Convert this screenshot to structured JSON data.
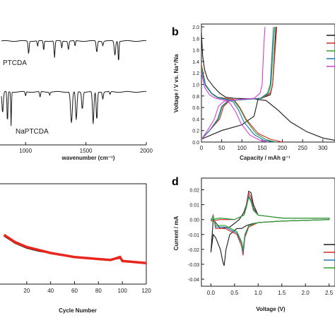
{
  "chart_data": [
    {
      "id": "a",
      "type": "line",
      "panel_label": "",
      "xlabel": "wavenumber (cm⁻¹)",
      "ylabel": "",
      "xlim": [
        800,
        2000
      ],
      "xticks": [
        1000,
        1500,
        2000
      ],
      "series": [
        {
          "name": "PTCDA",
          "label": "PTCDA",
          "color": "#1a1a1a"
        },
        {
          "name": "NaPTCDA",
          "label": "NaPTCDA",
          "color": "#1a1a1a"
        }
      ]
    },
    {
      "id": "b",
      "type": "line",
      "panel_label": "b",
      "xlabel": "Capacity / mAh g⁻¹",
      "ylabel": "Voltage / V vs. Na⁺/Na",
      "xlim": [
        0,
        330
      ],
      "ylim": [
        0,
        2.05
      ],
      "xticks": [
        0,
        50,
        100,
        150,
        200,
        250,
        300
      ],
      "yticks": [
        0.0,
        0.2,
        0.4,
        0.6,
        0.8,
        1.0,
        1.2,
        1.4,
        1.6,
        1.8,
        2.0
      ],
      "legend_colors": [
        "#1a1a1a",
        "#d62728",
        "#2ca02c",
        "#1f77b4",
        "#d43fd4"
      ],
      "series": [
        {
          "color": "#1a1a1a",
          "discharge": [
            [
              0,
              1.9
            ],
            [
              3,
              1.5
            ],
            [
              8,
              1.25
            ],
            [
              15,
              1.1
            ],
            [
              30,
              0.96
            ],
            [
              45,
              0.85
            ],
            [
              60,
              0.78
            ],
            [
              80,
              0.76
            ],
            [
              130,
              0.75
            ],
            [
              160,
              0.72
            ],
            [
              190,
              0.55
            ],
            [
              220,
              0.35
            ],
            [
              260,
              0.18
            ],
            [
              300,
              0.07
            ],
            [
              330,
              0.03
            ]
          ],
          "charge": [
            [
              0,
              0.05
            ],
            [
              50,
              0.2
            ],
            [
              100,
              0.3
            ],
            [
              130,
              0.45
            ],
            [
              140,
              0.75
            ],
            [
              155,
              0.78
            ],
            [
              170,
              0.82
            ],
            [
              176,
              1.0
            ],
            [
              180,
              1.5
            ],
            [
              184,
              2.0
            ]
          ]
        },
        {
          "color": "#d62728",
          "discharge": [
            [
              0,
              1.35
            ],
            [
              10,
              1.0
            ],
            [
              25,
              0.85
            ],
            [
              40,
              0.78
            ],
            [
              60,
              0.76
            ],
            [
              80,
              0.74
            ],
            [
              95,
              0.6
            ],
            [
              110,
              0.4
            ],
            [
              140,
              0.15
            ],
            [
              170,
              0.05
            ],
            [
              200,
              0.0
            ]
          ],
          "charge": [
            [
              0,
              0.05
            ],
            [
              20,
              0.2
            ],
            [
              45,
              0.4
            ],
            [
              55,
              0.62
            ],
            [
              70,
              0.72
            ],
            [
              150,
              0.76
            ],
            [
              170,
              0.85
            ],
            [
              176,
              1.0
            ],
            [
              181,
              1.5
            ],
            [
              186,
              2.0
            ]
          ]
        },
        {
          "color": "#2ca02c",
          "discharge": [
            [
              0,
              1.3
            ],
            [
              10,
              1.0
            ],
            [
              25,
              0.85
            ],
            [
              40,
              0.78
            ],
            [
              60,
              0.75
            ],
            [
              80,
              0.72
            ],
            [
              95,
              0.58
            ],
            [
              110,
              0.38
            ],
            [
              135,
              0.15
            ],
            [
              160,
              0.04
            ],
            [
              185,
              0.0
            ]
          ],
          "charge": [
            [
              0,
              0.05
            ],
            [
              20,
              0.2
            ],
            [
              42,
              0.4
            ],
            [
              52,
              0.62
            ],
            [
              68,
              0.72
            ],
            [
              148,
              0.76
            ],
            [
              166,
              0.85
            ],
            [
              172,
              1.0
            ],
            [
              176,
              1.5
            ],
            [
              181,
              2.0
            ]
          ]
        },
        {
          "color": "#1f77b4",
          "discharge": [
            [
              0,
              1.25
            ],
            [
              10,
              0.98
            ],
            [
              25,
              0.84
            ],
            [
              40,
              0.77
            ],
            [
              60,
              0.74
            ],
            [
              78,
              0.7
            ],
            [
              92,
              0.55
            ],
            [
              105,
              0.35
            ],
            [
              130,
              0.13
            ],
            [
              155,
              0.03
            ],
            [
              180,
              0.0
            ]
          ],
          "charge": [
            [
              0,
              0.05
            ],
            [
              20,
              0.2
            ],
            [
              40,
              0.4
            ],
            [
              50,
              0.62
            ],
            [
              66,
              0.72
            ],
            [
              146,
              0.76
            ],
            [
              163,
              0.85
            ],
            [
              170,
              1.0
            ],
            [
              174,
              1.5
            ],
            [
              178,
              2.0
            ]
          ]
        },
        {
          "color": "#d43fd4",
          "discharge": [
            [
              0,
              1.2
            ],
            [
              8,
              0.95
            ],
            [
              20,
              0.82
            ],
            [
              35,
              0.76
            ],
            [
              55,
              0.73
            ],
            [
              70,
              0.68
            ],
            [
              85,
              0.52
            ],
            [
              98,
              0.32
            ],
            [
              120,
              0.12
            ],
            [
              145,
              0.03
            ],
            [
              165,
              0.0
            ]
          ],
          "charge": [
            [
              0,
              0.05
            ],
            [
              15,
              0.2
            ],
            [
              32,
              0.4
            ],
            [
              42,
              0.62
            ],
            [
              58,
              0.72
            ],
            [
              130,
              0.76
            ],
            [
              145,
              0.85
            ],
            [
              150,
              1.0
            ],
            [
              153,
              1.5
            ],
            [
              157,
              2.0
            ]
          ]
        }
      ]
    },
    {
      "id": "c",
      "type": "scatter",
      "panel_label": "",
      "xlabel": "Cycle Number",
      "ylabel": "",
      "xlim": [
        0,
        120
      ],
      "xticks": [
        20,
        40,
        60,
        80,
        100,
        120
      ],
      "series": [
        {
          "color": "#1a1a1a",
          "points": [
            [
              1,
              148
            ],
            [
              5,
              145
            ],
            [
              10,
              141
            ],
            [
              20,
              136
            ],
            [
              30,
              133
            ],
            [
              40,
              131
            ],
            [
              50,
              129
            ],
            [
              60,
              127
            ],
            [
              70,
              126
            ],
            [
              80,
              125
            ],
            [
              90,
              124
            ],
            [
              98,
              126
            ],
            [
              100,
              123
            ],
            [
              110,
              122
            ],
            [
              120,
              121
            ]
          ]
        },
        {
          "color": "#e8261d",
          "points": [
            [
              1,
              149
            ],
            [
              5,
              146
            ],
            [
              10,
              142
            ],
            [
              20,
              137
            ],
            [
              30,
              134
            ],
            [
              40,
              131
            ],
            [
              50,
              129
            ],
            [
              60,
              127
            ],
            [
              70,
              126
            ],
            [
              80,
              125
            ],
            [
              90,
              124
            ],
            [
              98,
              127
            ],
            [
              100,
              123
            ],
            [
              110,
              122
            ],
            [
              120,
              121
            ]
          ]
        }
      ]
    },
    {
      "id": "d",
      "type": "line",
      "panel_label": "d",
      "xlabel": "Voltage (V)",
      "ylabel": "Current / mA",
      "xlim": [
        -0.2,
        2.7
      ],
      "ylim": [
        -0.04,
        0.025
      ],
      "xticks": [
        0.0,
        0.5,
        1.0,
        1.5,
        2.0,
        2.5
      ],
      "yticks": [
        0.02,
        0.01,
        0.0,
        -0.01,
        -0.02,
        -0.03,
        -0.04
      ],
      "legend_colors": [
        "#1a1a1a",
        "#d62728",
        "#1f77b4",
        "#2ca02c"
      ],
      "series": [
        {
          "color": "#1a1a1a",
          "points": [
            [
              0.0,
              -0.022
            ],
            [
              0.05,
              -0.01
            ],
            [
              0.1,
              -0.012
            ],
            [
              0.2,
              -0.02
            ],
            [
              0.25,
              -0.028
            ],
            [
              0.28,
              -0.031
            ],
            [
              0.32,
              -0.02
            ],
            [
              0.4,
              -0.01
            ],
            [
              0.55,
              -0.006
            ],
            [
              0.65,
              -0.006
            ],
            [
              0.75,
              -0.004
            ],
            [
              0.85,
              -0.003
            ],
            [
              1.0,
              -0.002
            ],
            [
              1.5,
              -0.001
            ],
            [
              2.5,
              0.0
            ],
            [
              2.5,
              0.001
            ],
            [
              1.5,
              0.001
            ],
            [
              1.0,
              0.003
            ],
            [
              0.9,
              0.01
            ],
            [
              0.85,
              0.018
            ],
            [
              0.8,
              0.019
            ],
            [
              0.75,
              0.01
            ],
            [
              0.7,
              0.005
            ],
            [
              0.6,
              0.0
            ],
            [
              0.4,
              -0.005
            ],
            [
              0.2,
              -0.006
            ],
            [
              0.05,
              0.0
            ],
            [
              0.0,
              -0.022
            ]
          ]
        },
        {
          "color": "#d62728",
          "points": [
            [
              0.0,
              -0.001
            ],
            [
              0.05,
              0.003
            ],
            [
              0.1,
              -0.006
            ],
            [
              0.3,
              -0.006
            ],
            [
              0.55,
              -0.01
            ],
            [
              0.65,
              -0.018
            ],
            [
              0.68,
              -0.024
            ],
            [
              0.72,
              -0.012
            ],
            [
              0.8,
              -0.005
            ],
            [
              1.0,
              -0.002
            ],
            [
              1.5,
              -0.001
            ],
            [
              2.5,
              0.0
            ],
            [
              2.5,
              0.001
            ],
            [
              1.5,
              0.001
            ],
            [
              1.0,
              0.003
            ],
            [
              0.9,
              0.008
            ],
            [
              0.85,
              0.015
            ],
            [
              0.8,
              0.018
            ],
            [
              0.75,
              0.01
            ],
            [
              0.7,
              0.003
            ],
            [
              0.5,
              0.0
            ],
            [
              0.2,
              0.0
            ],
            [
              0.0,
              -0.001
            ]
          ]
        },
        {
          "color": "#1f77b4",
          "points": [
            [
              0.0,
              0.0
            ],
            [
              0.05,
              0.002
            ],
            [
              0.1,
              -0.005
            ],
            [
              0.3,
              -0.005
            ],
            [
              0.55,
              -0.009
            ],
            [
              0.65,
              -0.016
            ],
            [
              0.68,
              -0.022
            ],
            [
              0.72,
              -0.011
            ],
            [
              0.8,
              -0.004
            ],
            [
              1.0,
              -0.002
            ],
            [
              1.5,
              -0.001
            ],
            [
              2.5,
              0.0
            ],
            [
              2.5,
              0.001
            ],
            [
              1.5,
              0.001
            ],
            [
              1.0,
              0.003
            ],
            [
              0.9,
              0.007
            ],
            [
              0.85,
              0.013
            ],
            [
              0.8,
              0.016
            ],
            [
              0.75,
              0.009
            ],
            [
              0.7,
              0.003
            ],
            [
              0.5,
              0.0
            ],
            [
              0.2,
              0.001
            ],
            [
              0.0,
              0.0
            ]
          ]
        },
        {
          "color": "#2ca02c",
          "points": [
            [
              0.0,
              0.0
            ],
            [
              0.05,
              0.002
            ],
            [
              0.1,
              -0.004
            ],
            [
              0.3,
              -0.004
            ],
            [
              0.55,
              -0.008
            ],
            [
              0.65,
              -0.015
            ],
            [
              0.68,
              -0.02
            ],
            [
              0.72,
              -0.01
            ],
            [
              0.8,
              -0.004
            ],
            [
              1.0,
              -0.002
            ],
            [
              1.5,
              -0.001
            ],
            [
              2.5,
              0.0
            ],
            [
              2.5,
              0.001
            ],
            [
              1.5,
              0.001
            ],
            [
              1.0,
              0.003
            ],
            [
              0.9,
              0.006
            ],
            [
              0.85,
              0.012
            ],
            [
              0.8,
              0.015
            ],
            [
              0.75,
              0.008
            ],
            [
              0.7,
              0.003
            ],
            [
              0.5,
              0.0
            ],
            [
              0.2,
              0.001
            ],
            [
              0.0,
              0.0
            ]
          ]
        }
      ]
    }
  ]
}
